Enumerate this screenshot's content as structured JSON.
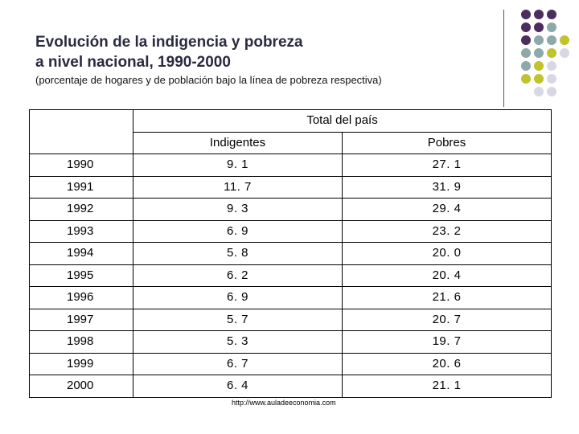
{
  "title_line1": "Evolución de la indigencia y pobreza",
  "title_line2": "a nivel nacional, 1990-2000",
  "subtitle": "(porcentaje de hogares y de población bajo la línea de pobreza respectiva)",
  "table": {
    "group_header": "Total del país",
    "col_indigentes": "Indigentes",
    "col_pobres": "Pobres",
    "rows": [
      {
        "year": "1990",
        "indigentes": "9. 1",
        "pobres": "27. 1"
      },
      {
        "year": "1991",
        "indigentes": "11. 7",
        "pobres": "31. 9"
      },
      {
        "year": "1992",
        "indigentes": "9. 3",
        "pobres": "29. 4"
      },
      {
        "year": "1993",
        "indigentes": "6. 9",
        "pobres": "23. 2"
      },
      {
        "year": "1994",
        "indigentes": "5. 8",
        "pobres": "20. 0"
      },
      {
        "year": "1995",
        "indigentes": "6. 2",
        "pobres": "20. 4"
      },
      {
        "year": "1996",
        "indigentes": "6. 9",
        "pobres": "21. 6"
      },
      {
        "year": "1997",
        "indigentes": "5. 7",
        "pobres": "20. 7"
      },
      {
        "year": "1998",
        "indigentes": "5. 3",
        "pobres": "19. 7"
      },
      {
        "year": "1999",
        "indigentes": "6. 7",
        "pobres": "20. 6"
      },
      {
        "year": "2000",
        "indigentes": "6. 4",
        "pobres": "21. 1"
      }
    ]
  },
  "source_url": "http://www.auladeeconomia.com",
  "colors": {
    "purple": "#4b2d5e",
    "teal": "#8fa8aa",
    "olive": "#c2c22e",
    "lavender": "#d8d8e4"
  }
}
